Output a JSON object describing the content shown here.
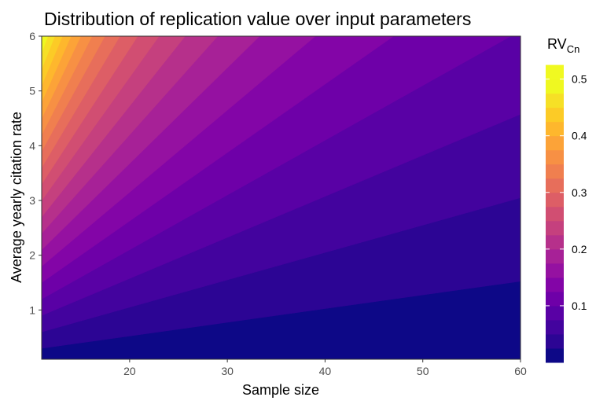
{
  "chart_data": {
    "type": "heatmap",
    "subtype": "filled-contour",
    "title": "Distribution of replication value over input parameters",
    "xlabel": "Sample size",
    "ylabel": "Average yearly citation rate",
    "xlim": [
      11,
      60
    ],
    "ylim": [
      0.1,
      6
    ],
    "x_ticks": [
      20,
      30,
      40,
      50,
      60
    ],
    "y_ticks": [
      1,
      2,
      3,
      4,
      5,
      6
    ],
    "grid": false,
    "colormap": "plasma",
    "z_formula": "RV = y / (x + 1)",
    "z_range": [
      0.0,
      0.53
    ],
    "contour_levels": [
      0.0,
      0.025,
      0.05,
      0.075,
      0.1,
      0.125,
      0.15,
      0.175,
      0.2,
      0.225,
      0.25,
      0.275,
      0.3,
      0.325,
      0.35,
      0.375,
      0.4,
      0.425,
      0.45,
      0.475,
      0.5,
      0.525
    ],
    "level_colors": [
      "#0d0887",
      "#2c0594",
      "#43039e",
      "#5901a5",
      "#6e00a8",
      "#8305a7",
      "#9511a1",
      "#a72197",
      "#b6308b",
      "#c5407e",
      "#d14e72",
      "#dd5e66",
      "#e76e5b",
      "#f07f4f",
      "#f79044",
      "#fca338",
      "#feb72d",
      "#fccb26",
      "#f6e026",
      "#eff821",
      "#f0f921"
    ],
    "legend": {
      "title": "RV",
      "title_subscript": "Cn",
      "position": "right",
      "ticks": [
        0.1,
        0.2,
        0.3,
        0.4,
        0.5
      ],
      "tick_labels": [
        "0.1",
        "0.2",
        "0.3",
        "0.4",
        "0.5"
      ]
    },
    "x_tick_labels": [
      "20",
      "30",
      "40",
      "50",
      "60"
    ],
    "y_tick_labels": [
      "1",
      "2",
      "3",
      "4",
      "5",
      "6"
    ]
  }
}
